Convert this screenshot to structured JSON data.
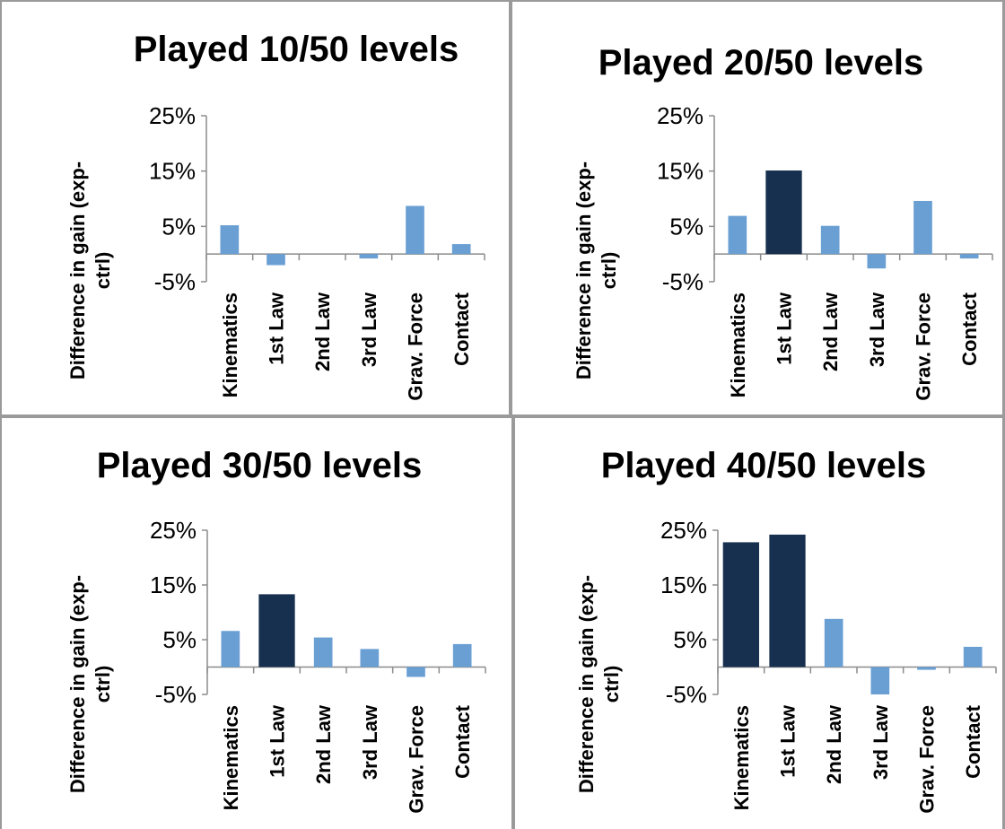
{
  "colors": {
    "light": "#6a9fd4",
    "dark": "#17304f",
    "axis": "#8c8c8c",
    "border": "#9a9a9a"
  },
  "chart_data": [
    {
      "type": "bar",
      "title": "Played 10/50 levels",
      "ylabel_line1": "Difference in gain (exp-",
      "ylabel_line2": "ctrl)",
      "yticks": [
        "25%",
        "15%",
        "5%",
        "-5%"
      ],
      "ylim": [
        -5,
        25
      ],
      "categories": [
        "Kinematics",
        "1st Law",
        "2nd Law",
        "3rd Law",
        "Grav. Force",
        "Contact"
      ],
      "values": [
        5.2,
        -2.0,
        0.0,
        -0.8,
        8.7,
        1.8
      ],
      "highlight": [
        false,
        false,
        false,
        false,
        false,
        false
      ]
    },
    {
      "type": "bar",
      "title": "Played 20/50 levels",
      "ylabel_line1": "Difference in gain (exp-",
      "ylabel_line2": "ctrl)",
      "yticks": [
        "25%",
        "15%",
        "5%",
        "-5%"
      ],
      "ylim": [
        -5,
        25
      ],
      "categories": [
        "Kinematics",
        "1st Law",
        "2nd Law",
        "3rd Law",
        "Grav. Force",
        "Contact"
      ],
      "values": [
        6.9,
        15.1,
        5.1,
        -2.6,
        9.6,
        -0.8
      ],
      "highlight": [
        false,
        true,
        false,
        false,
        false,
        false
      ]
    },
    {
      "type": "bar",
      "title": "Played 30/50 levels",
      "ylabel_line1": "Difference in gain (exp-",
      "ylabel_line2": "ctrl)",
      "yticks": [
        "25%",
        "15%",
        "5%",
        "-5%"
      ],
      "ylim": [
        -5,
        25
      ],
      "categories": [
        "Kinematics",
        "1st Law",
        "2nd Law",
        "3rd Law",
        "Grav. Force",
        "Contact"
      ],
      "values": [
        6.6,
        13.3,
        5.4,
        3.3,
        -1.8,
        4.2
      ],
      "highlight": [
        false,
        true,
        false,
        false,
        false,
        false
      ]
    },
    {
      "type": "bar",
      "title": "Played 40/50 levels",
      "ylabel_line1": "Difference in gain (exp-",
      "ylabel_line2": "ctrl)",
      "yticks": [
        "25%",
        "15%",
        "5%",
        "-5%"
      ],
      "ylim": [
        -5,
        25
      ],
      "categories": [
        "Kinematics",
        "1st Law",
        "2nd Law",
        "3rd Law",
        "Grav. Force",
        "Contact"
      ],
      "values": [
        22.8,
        24.2,
        8.8,
        -5.0,
        -0.5,
        3.7
      ],
      "highlight": [
        true,
        true,
        false,
        false,
        false,
        false
      ]
    }
  ]
}
